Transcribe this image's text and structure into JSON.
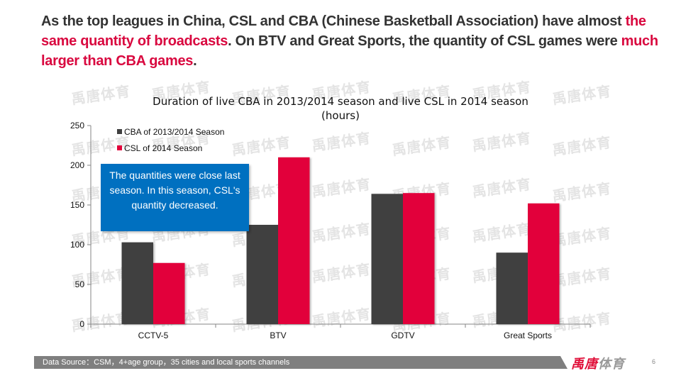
{
  "headline": {
    "segments": [
      {
        "text": "As the top leagues in China, CSL and CBA (Chinese Basketball Association) have almost ",
        "highlight": false
      },
      {
        "text": "the same quantity of broadcasts",
        "highlight": true
      },
      {
        "text": ". On BTV and Great Sports, the quantity of CSL games were ",
        "highlight": false
      },
      {
        "text": "much larger than CBA games",
        "highlight": true
      },
      {
        "text": ".",
        "highlight": false
      }
    ]
  },
  "watermark_text": "禹唐体育",
  "callout": {
    "text": "The quantities were close last season. In this season, CSL's quantity decreased."
  },
  "footer": {
    "source": "Data Source：CSM，4+age group，35 cities and local sports channels",
    "logo_red": "禹唐",
    "logo_gray": "体育",
    "page_number": "6"
  },
  "colors": {
    "cba": "#404040",
    "csl": "#e2003a",
    "highlight": "#d9083f",
    "callout": "#0070c0",
    "footer_bar": "#7f7f7f"
  },
  "chart_data": {
    "type": "bar",
    "title": "Duration of live CBA in 2013/2014 season and live CSL in 2014 season (hours)",
    "title_line1": "Duration of live CBA in 2013/2014 season and live CSL in 2014 season",
    "title_line2": "(hours)",
    "xlabel": "",
    "ylabel": "",
    "categories": [
      "CCTV-5",
      "BTV",
      "GDTV",
      "Great Sports"
    ],
    "series": [
      {
        "name": "CBA of 2013/2014 Season",
        "values": [
          103,
          125,
          164,
          90
        ]
      },
      {
        "name": "CSL of 2014 Season",
        "values": [
          77,
          210,
          165,
          152
        ]
      }
    ],
    "ylim": [
      0,
      250
    ],
    "yticks": [
      0,
      50,
      100,
      150,
      200,
      250
    ],
    "grid": false,
    "legend": "top-left"
  }
}
